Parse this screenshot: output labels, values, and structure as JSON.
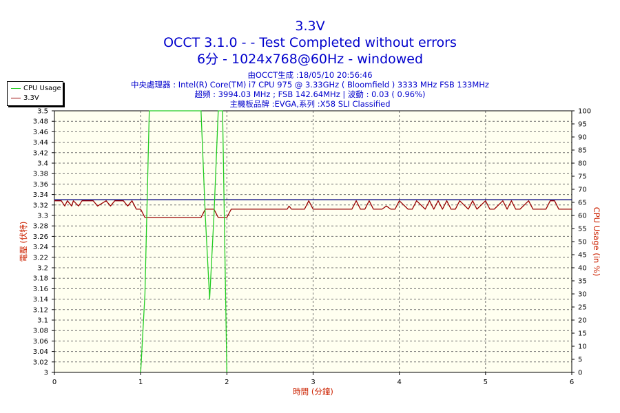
{
  "header": {
    "title": "3.3V",
    "subtitle": "OCCT 3.1.0 -  - Test Completed without errors",
    "subtitle2": "6分 - 1024x768@60Hz - windowed"
  },
  "info": {
    "line1": "由OCCT生成 :18/05/10 20:56:46",
    "line2": "中央處理器 : Intel(R) Core(TM) i7 CPU 975 @ 3.33GHz ( Bloomfield ) 3333 MHz FSB 133MHz",
    "line3": "超頻 : 3994.03 MHz ; FSB 142.64MHz | 波動 : 0.03 ( 0.96%)",
    "line4": "主機板品牌 :EVGA,系列 :X58 SLI Classified"
  },
  "colors": {
    "background": "#ffffff",
    "plot_background": "#fffff0",
    "cpu_usage": "#22cc22",
    "voltage": "#990000",
    "reference_line": "#000080",
    "title": "#0000cc",
    "axis_title": "#cc2200"
  },
  "chart_data": {
    "type": "line",
    "x": [
      0,
      0.08,
      0.12,
      0.15,
      0.2,
      0.22,
      0.28,
      0.32,
      0.36,
      0.45,
      0.5,
      0.6,
      0.65,
      0.7,
      0.8,
      0.85,
      0.9,
      0.95,
      1.0,
      1.05,
      1.1,
      1.2,
      1.3,
      1.4,
      1.5,
      1.6,
      1.7,
      1.75,
      1.8,
      1.85,
      1.9,
      1.95,
      2.0,
      2.05,
      2.1,
      2.5,
      2.7,
      2.72,
      2.75,
      2.9,
      2.95,
      3.0,
      3.45,
      3.5,
      3.55,
      3.6,
      3.65,
      3.7,
      3.8,
      3.85,
      3.9,
      3.95,
      4.0,
      4.1,
      4.15,
      4.2,
      4.3,
      4.35,
      4.4,
      4.45,
      4.5,
      4.55,
      4.6,
      4.65,
      4.7,
      4.8,
      4.85,
      4.9,
      5.0,
      5.05,
      5.1,
      5.2,
      5.25,
      5.3,
      5.35,
      5.4,
      5.5,
      5.55,
      5.6,
      5.7,
      5.75,
      5.8,
      5.85,
      5.9,
      6.0
    ],
    "series": [
      {
        "name": "3.3V",
        "axis": "left",
        "values": [
          3.328,
          3.328,
          3.318,
          3.328,
          3.318,
          3.328,
          3.318,
          3.328,
          3.328,
          3.328,
          3.318,
          3.328,
          3.318,
          3.328,
          3.328,
          3.318,
          3.328,
          3.312,
          3.312,
          3.296,
          3.296,
          3.296,
          3.296,
          3.296,
          3.296,
          3.296,
          3.296,
          3.312,
          3.312,
          3.312,
          3.296,
          3.296,
          3.296,
          3.312,
          3.312,
          3.312,
          3.312,
          3.318,
          3.312,
          3.312,
          3.328,
          3.312,
          3.312,
          3.328,
          3.312,
          3.312,
          3.328,
          3.312,
          3.312,
          3.318,
          3.312,
          3.312,
          3.328,
          3.312,
          3.312,
          3.328,
          3.312,
          3.328,
          3.312,
          3.328,
          3.312,
          3.328,
          3.312,
          3.312,
          3.328,
          3.312,
          3.328,
          3.312,
          3.328,
          3.312,
          3.312,
          3.328,
          3.312,
          3.328,
          3.312,
          3.312,
          3.328,
          3.312,
          3.312,
          3.312,
          3.328,
          3.328,
          3.312,
          3.312,
          3.312
        ]
      },
      {
        "name": "CPU Usage",
        "axis": "right",
        "values": [
          null,
          null,
          null,
          null,
          null,
          null,
          null,
          null,
          null,
          null,
          null,
          null,
          null,
          null,
          null,
          null,
          null,
          null,
          0,
          30,
          100,
          100,
          100,
          100,
          100,
          100,
          100,
          60,
          28,
          60,
          100,
          100,
          0,
          null,
          null,
          null,
          null,
          null,
          null,
          null,
          null,
          null,
          null,
          null,
          null,
          null,
          null,
          null,
          null,
          null,
          null,
          null,
          null,
          null,
          null,
          null,
          null,
          null,
          null,
          null,
          null,
          null,
          null,
          null,
          null,
          null,
          null,
          null,
          null,
          null,
          null,
          null,
          null,
          null,
          null,
          null,
          null,
          null,
          null,
          null,
          null,
          null,
          null,
          null,
          null
        ]
      }
    ],
    "reference_line": 3.33,
    "xlabel": "時間 (分鐘)",
    "ylabel": "電壓 (伏特)",
    "y2label": "CPU Usage (in %)",
    "xlim": [
      0,
      6
    ],
    "ylim": [
      3.0,
      3.5
    ],
    "y2lim": [
      0,
      100
    ],
    "xticks": [
      "0",
      "1",
      "2",
      "3",
      "4",
      "5",
      "6"
    ],
    "yticks": [
      "3",
      "3.02",
      "3.04",
      "3.06",
      "3.08",
      "3.1",
      "3.12",
      "3.14",
      "3.16",
      "3.18",
      "3.2",
      "3.22",
      "3.24",
      "3.26",
      "3.28",
      "3.3",
      "3.32",
      "3.34",
      "3.36",
      "3.38",
      "3.4",
      "3.42",
      "3.44",
      "3.46",
      "3.48",
      "3.5"
    ],
    "y2ticks": [
      "0",
      "5",
      "10",
      "15",
      "20",
      "25",
      "30",
      "35",
      "40",
      "45",
      "50",
      "55",
      "60",
      "65",
      "70",
      "75",
      "80",
      "85",
      "90",
      "95",
      "100"
    ],
    "grid": true,
    "legend_position": "top-left"
  }
}
